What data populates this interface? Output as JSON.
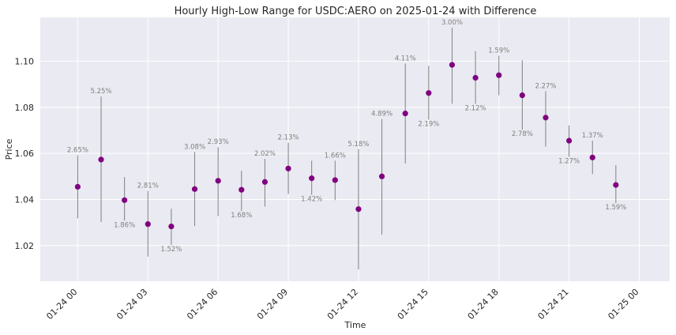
{
  "colors": {
    "plot_background": "#eaeaf2",
    "grid": "#ffffff",
    "marker": "#800080",
    "range_line": "#808080",
    "label_text": "#7f7f7f"
  },
  "chart_data": {
    "type": "scatter",
    "title": "Hourly High-Low Range for USDC:AERO on 2025-01-24 with Difference",
    "xlabel": "Time",
    "ylabel": "Price",
    "x_unit": "hours since 2025-01-24 00:00",
    "xlim": [
      -1.6,
      25.3
    ],
    "ylim": [
      1.0045,
      1.119
    ],
    "yticks": [
      "1.02",
      "1.04",
      "1.06",
      "1.08",
      "1.10"
    ],
    "xticks": [
      {
        "label": "01-24 00",
        "hour": 0
      },
      {
        "label": "01-24 03",
        "hour": 3
      },
      {
        "label": "01-24 06",
        "hour": 6
      },
      {
        "label": "01-24 09",
        "hour": 9
      },
      {
        "label": "01-24 12",
        "hour": 12
      },
      {
        "label": "01-24 15",
        "hour": 15
      },
      {
        "label": "01-24 18",
        "hour": 18
      },
      {
        "label": "01-24 21",
        "hour": 21
      },
      {
        "label": "01-25 00",
        "hour": 24
      }
    ],
    "points": [
      {
        "hour": 0,
        "price": 1.0455,
        "low": 1.0318,
        "high": 1.0592,
        "label": "2.65%",
        "label_pos": "above"
      },
      {
        "hour": 1,
        "price": 1.0573,
        "low": 1.0302,
        "high": 1.0847,
        "label": "5.25%",
        "label_pos": "above"
      },
      {
        "hour": 2,
        "price": 1.0397,
        "low": 1.0308,
        "high": 1.0497,
        "label": "1.86%",
        "label_pos": "below"
      },
      {
        "hour": 3,
        "price": 1.0293,
        "low": 1.0152,
        "high": 1.0437,
        "label": "2.81%",
        "label_pos": "above"
      },
      {
        "hour": 4,
        "price": 1.0283,
        "low": 1.0203,
        "high": 1.036,
        "label": "1.52%",
        "label_pos": "below"
      },
      {
        "hour": 5,
        "price": 1.0445,
        "low": 1.0285,
        "high": 1.0606,
        "label": "3.08%",
        "label_pos": "above"
      },
      {
        "hour": 6,
        "price": 1.0481,
        "low": 1.0328,
        "high": 1.0627,
        "label": "2.93%",
        "label_pos": "above"
      },
      {
        "hour": 7,
        "price": 1.0442,
        "low": 1.035,
        "high": 1.0524,
        "label": "1.68%",
        "label_pos": "below"
      },
      {
        "hour": 8,
        "price": 1.0476,
        "low": 1.0369,
        "high": 1.0576,
        "label": "2.02%",
        "label_pos": "above"
      },
      {
        "hour": 9,
        "price": 1.0534,
        "low": 1.0424,
        "high": 1.0646,
        "label": "2.13%",
        "label_pos": "above"
      },
      {
        "hour": 10,
        "price": 1.0492,
        "low": 1.042,
        "high": 1.0568,
        "label": "1.42%",
        "label_pos": "below"
      },
      {
        "hour": 11,
        "price": 1.0484,
        "low": 1.0397,
        "high": 1.0568,
        "label": "1.66%",
        "label_pos": "above"
      },
      {
        "hour": 12,
        "price": 1.0358,
        "low": 1.0096,
        "high": 1.0618,
        "label": "5.18%",
        "label_pos": "above"
      },
      {
        "hour": 13,
        "price": 1.05,
        "low": 1.0248,
        "high": 1.0749,
        "label": "4.89%",
        "label_pos": "above"
      },
      {
        "hour": 14,
        "price": 1.0773,
        "low": 1.0556,
        "high": 1.099,
        "label": "4.11%",
        "label_pos": "above"
      },
      {
        "hour": 15,
        "price": 1.0862,
        "low": 1.0746,
        "high": 1.098,
        "label": "2.19%",
        "label_pos": "below"
      },
      {
        "hour": 16,
        "price": 1.0984,
        "low": 1.0815,
        "high": 1.1145,
        "label": "3.00%",
        "label_pos": "above"
      },
      {
        "hour": 17,
        "price": 1.0928,
        "low": 1.0815,
        "high": 1.1043,
        "label": "2.12%",
        "label_pos": "below"
      },
      {
        "hour": 18,
        "price": 1.0939,
        "low": 1.0852,
        "high": 1.1024,
        "label": "1.59%",
        "label_pos": "above"
      },
      {
        "hour": 19,
        "price": 1.0852,
        "low": 1.0703,
        "high": 1.1004,
        "label": "2.78%",
        "label_pos": "below"
      },
      {
        "hour": 20,
        "price": 1.0755,
        "low": 1.063,
        "high": 1.087,
        "label": "2.27%",
        "label_pos": "above"
      },
      {
        "hour": 21,
        "price": 1.0655,
        "low": 1.0585,
        "high": 1.0721,
        "label": "1.27%",
        "label_pos": "below"
      },
      {
        "hour": 22,
        "price": 1.0582,
        "low": 1.051,
        "high": 1.0655,
        "label": "1.37%",
        "label_pos": "above"
      },
      {
        "hour": 23,
        "price": 1.0463,
        "low": 1.0384,
        "high": 1.0549,
        "label": "1.59%",
        "label_pos": "below"
      }
    ]
  }
}
